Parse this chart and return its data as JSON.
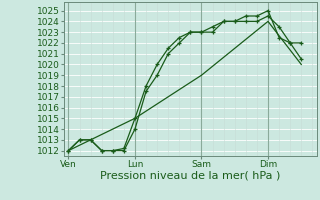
{
  "bg_color": "#cce8e0",
  "grid_color": "#b8d8d0",
  "line_color": "#1a5c1a",
  "marker_color": "#1a5c1a",
  "xlabel": "Pression niveau de la mer( hPa )",
  "xlabel_fontsize": 8,
  "yticks": [
    1012,
    1013,
    1014,
    1015,
    1016,
    1017,
    1018,
    1019,
    1020,
    1021,
    1022,
    1023,
    1024,
    1025
  ],
  "ylim": [
    1011.5,
    1025.8
  ],
  "xtick_labels": [
    "Ven",
    "Lun",
    "Sam",
    "Dim"
  ],
  "xtick_positions": [
    0,
    3,
    6,
    9
  ],
  "xlim": [
    -0.2,
    11.2
  ],
  "vlines": [
    0,
    3,
    6,
    9
  ],
  "line1_x": [
    0,
    0.5,
    1,
    1.5,
    2,
    2.5,
    3,
    3.5,
    4,
    4.5,
    5,
    5.5,
    6,
    6.5,
    7,
    7.5,
    8,
    8.5,
    9,
    9.5,
    10,
    10.5
  ],
  "line1_y": [
    1012,
    1013,
    1013,
    1012,
    1012,
    1012,
    1014,
    1017.5,
    1019,
    1021,
    1022,
    1023,
    1023,
    1023,
    1024,
    1024,
    1024,
    1024,
    1024.5,
    1023.5,
    1022,
    1022
  ],
  "line2_x": [
    0,
    0.5,
    1,
    1.5,
    2,
    2.5,
    3,
    3.5,
    4,
    4.5,
    5,
    5.5,
    6,
    6.5,
    7,
    7.5,
    8,
    8.5,
    9,
    9.5,
    10,
    10.5
  ],
  "line2_y": [
    1012,
    1013,
    1013,
    1012,
    1012,
    1012.2,
    1015,
    1018,
    1020,
    1021.5,
    1022.5,
    1023,
    1023,
    1023.5,
    1024,
    1024,
    1024.5,
    1024.5,
    1025,
    1022.5,
    1022,
    1020.5
  ],
  "line3_x": [
    0,
    3,
    6,
    9,
    10.5
  ],
  "line3_y": [
    1012,
    1015,
    1019,
    1024,
    1020
  ],
  "tick_fontsize": 6.5
}
